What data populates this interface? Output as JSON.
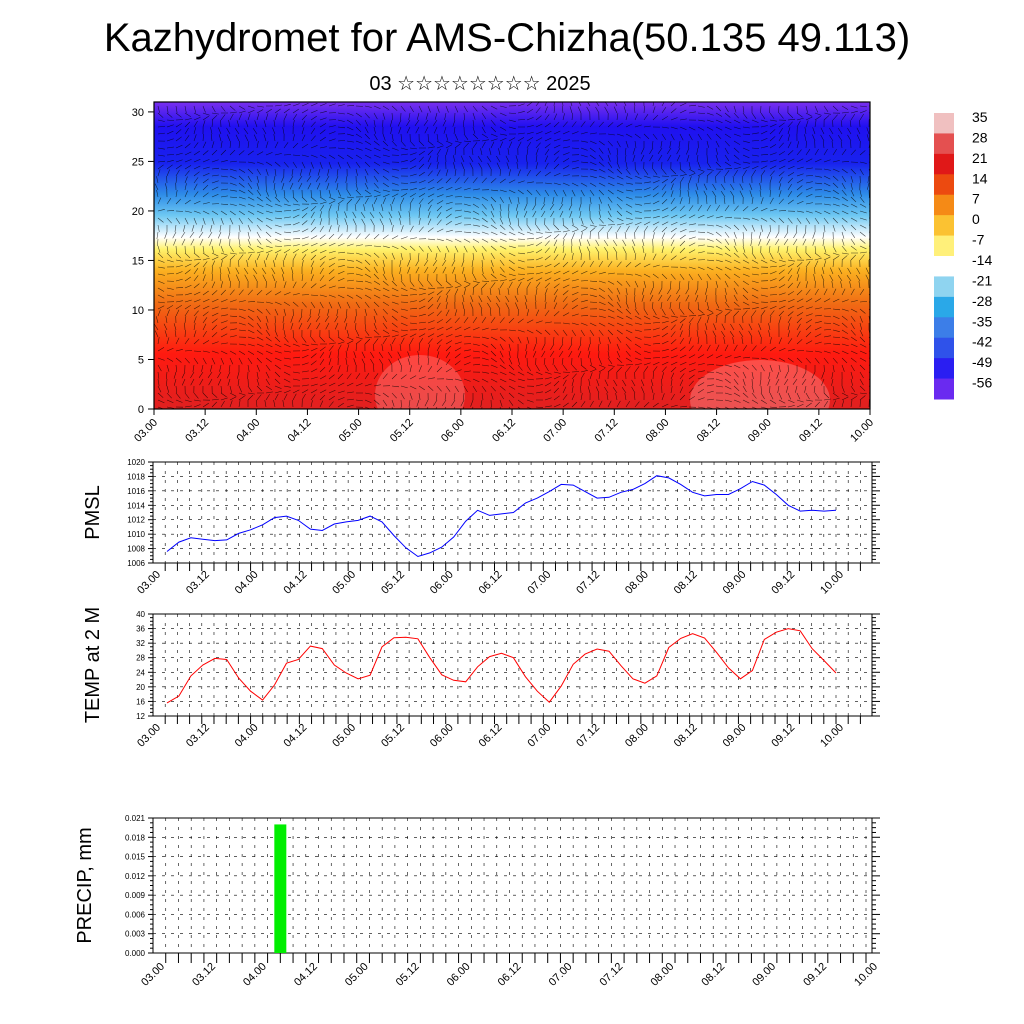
{
  "header": {
    "title": "Kazhydromet for AMS-Chizha(50.135 49.113)",
    "subtitle": "03 ☆☆☆☆☆☆☆☆ 2025"
  },
  "chart_data": [
    {
      "type": "heatmap",
      "title": "",
      "xlabel": "",
      "ylabel": "",
      "x_tick_labels": [
        "03.00",
        "03.12",
        "04.00",
        "04.12",
        "05.00",
        "05.12",
        "06.00",
        "06.12",
        "07.00",
        "07.12",
        "08.00",
        "08.12",
        "09.00",
        "09.12",
        "10.00"
      ],
      "y_ticks": [
        0,
        5,
        10,
        15,
        20,
        25,
        30
      ],
      "ylim": [
        0,
        31
      ],
      "colorbar": {
        "labels": [
          "35",
          "28",
          "21",
          "14",
          "7",
          "0",
          "-7",
          "-14",
          "-21",
          "-28",
          "-35",
          "-42",
          "-49",
          "-56"
        ],
        "colors": [
          "#f0c0c0",
          "#e45050",
          "#e01818",
          "#ec4a10",
          "#f58a16",
          "#fbc232",
          "#fff07a",
          "#ffffff",
          "#8fd4f0",
          "#2aa8e8",
          "#3c7ee8",
          "#2f52ea",
          "#2a1ef2",
          "#6a2af0"
        ]
      },
      "overlay": "wind vectors"
    },
    {
      "type": "line",
      "ylabel": "PMSL",
      "ylim": [
        1006,
        1020
      ],
      "y_ticks": [
        1006,
        1008,
        1010,
        1012,
        1014,
        1016,
        1018,
        1020
      ],
      "x_tick_labels": [
        "03.00",
        "03.12",
        "04.00",
        "04.12",
        "05.00",
        "05.12",
        "06.00",
        "06.12",
        "07.00",
        "07.12",
        "08.00",
        "08.12",
        "09.00",
        "09.12",
        "10.00"
      ],
      "series": [
        {
          "color": "#0000ff",
          "values": [
            1007.6,
            1008.9,
            1009.5,
            1009.3,
            1009.1,
            1009.2,
            1010.1,
            1010.6,
            1011.3,
            1012.3,
            1012.5,
            1011.9,
            1010.7,
            1010.5,
            1011.4,
            1011.7,
            1011.9,
            1012.5,
            1011.7,
            1009.8,
            1008.1,
            1006.9,
            1007.4,
            1008.2,
            1009.6,
            1011.8,
            1013.3,
            1012.6,
            1012.8,
            1013.0,
            1014.3,
            1015.0,
            1015.9,
            1016.9,
            1016.8,
            1015.9,
            1015.0,
            1015.1,
            1015.8,
            1016.2,
            1017.0,
            1018.1,
            1017.8,
            1016.9,
            1015.8,
            1015.3,
            1015.5,
            1015.5,
            1016.3,
            1017.3,
            1016.8,
            1015.5,
            1014.0,
            1013.2,
            1013.3,
            1013.2,
            1013.3
          ]
        }
      ]
    },
    {
      "type": "line",
      "ylabel": "TEMP at 2 M",
      "ylim": [
        12,
        40
      ],
      "y_ticks": [
        12,
        16,
        20,
        24,
        28,
        32,
        36,
        40
      ],
      "x_tick_labels": [
        "03.00",
        "03.12",
        "04.00",
        "04.12",
        "05.00",
        "05.12",
        "06.00",
        "06.12",
        "07.00",
        "07.12",
        "08.00",
        "08.12",
        "09.00",
        "09.12",
        "10.00"
      ],
      "series": [
        {
          "color": "#ff0000",
          "values": [
            15.6,
            17.5,
            23.0,
            26.0,
            27.8,
            27.5,
            22.4,
            18.8,
            16.4,
            20.5,
            26.5,
            27.5,
            31.2,
            30.5,
            26.0,
            23.8,
            22.2,
            23.2,
            31.0,
            33.5,
            33.6,
            33.2,
            28.0,
            23.3,
            21.8,
            21.4,
            25.5,
            28.3,
            29.2,
            28.0,
            22.8,
            18.8,
            15.8,
            20.2,
            26.2,
            29.0,
            30.4,
            29.8,
            25.8,
            22.2,
            21.0,
            23.0,
            30.8,
            33.3,
            34.6,
            33.4,
            29.5,
            25.2,
            22.2,
            24.5,
            33.0,
            35.0,
            36.0,
            35.4,
            30.5,
            27.2,
            23.8
          ]
        }
      ]
    },
    {
      "type": "bar",
      "ylabel": "PRECIP, mm",
      "ylim": [
        0,
        0.021
      ],
      "y_tick_labels": [
        "0.000",
        "0.003",
        "0.006",
        "0.009",
        "0.012",
        "0.015",
        "0.018",
        "0.021"
      ],
      "x_tick_labels": [
        "03.00",
        "03.12",
        "04.00",
        "04.12",
        "05.00",
        "05.12",
        "06.00",
        "06.12",
        "07.00",
        "07.12",
        "08.00",
        "08.12",
        "09.00",
        "09.12",
        "10.00"
      ],
      "series": [
        {
          "color": "#00ee00",
          "bars": [
            {
              "x": "04.06",
              "value": 0.02
            }
          ]
        }
      ]
    }
  ]
}
